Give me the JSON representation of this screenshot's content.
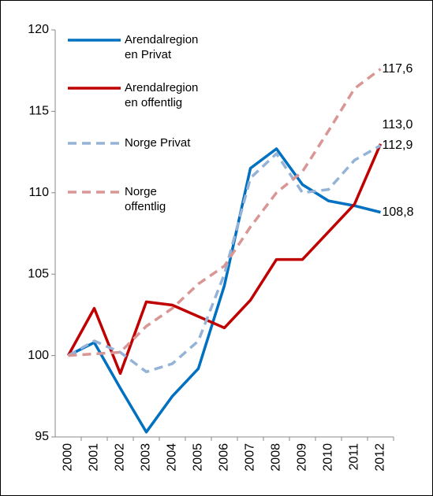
{
  "chart_data": {
    "type": "line",
    "categories": [
      "2000",
      "2001",
      "2002",
      "2003",
      "2004",
      "2005",
      "2006",
      "2007",
      "2008",
      "2009",
      "2010",
      "2011",
      "2012"
    ],
    "series": [
      {
        "name": "Arendalregion\nen Privat",
        "color": "#0070c0",
        "dashed": false,
        "values": [
          100,
          100.8,
          98,
          95.3,
          97.5,
          99.2,
          104.3,
          111.5,
          112.7,
          110.5,
          109.5,
          109.2,
          108.8
        ],
        "value_labels": [
          null,
          null,
          null,
          null,
          null,
          null,
          null,
          null,
          null,
          null,
          null,
          null,
          "108,8"
        ]
      },
      {
        "name": "Arendalregion\nen offentlig",
        "color": "#c00000",
        "dashed": false,
        "values": [
          100,
          102.9,
          98.9,
          103.3,
          103.1,
          102.4,
          101.7,
          103.4,
          105.9,
          105.9,
          107.6,
          109.3,
          113.0
        ],
        "value_labels": [
          null,
          null,
          null,
          null,
          null,
          null,
          null,
          null,
          null,
          null,
          null,
          null,
          "113,0"
        ]
      },
      {
        "name": "Norge Privat",
        "color": "#95b3d7",
        "dashed": true,
        "values": [
          100,
          100.9,
          100.2,
          99,
          99.5,
          100.9,
          105,
          110.9,
          112.4,
          110,
          110.2,
          112,
          112.9
        ],
        "value_labels": [
          null,
          null,
          null,
          null,
          null,
          null,
          null,
          null,
          null,
          null,
          null,
          null,
          "112,9"
        ]
      },
      {
        "name": "Norge\noffentlig",
        "color": "#d99694",
        "dashed": true,
        "values": [
          100,
          100.1,
          100.2,
          101.8,
          102.9,
          104.4,
          105.5,
          107.9,
          110,
          111.3,
          113.8,
          116.4,
          117.6
        ],
        "value_labels": [
          null,
          null,
          null,
          null,
          null,
          null,
          null,
          null,
          null,
          null,
          null,
          null,
          "117,6"
        ]
      }
    ],
    "ylim": [
      95,
      120
    ],
    "yticks": [
      95,
      100,
      105,
      110,
      115,
      120
    ],
    "grid": false
  }
}
